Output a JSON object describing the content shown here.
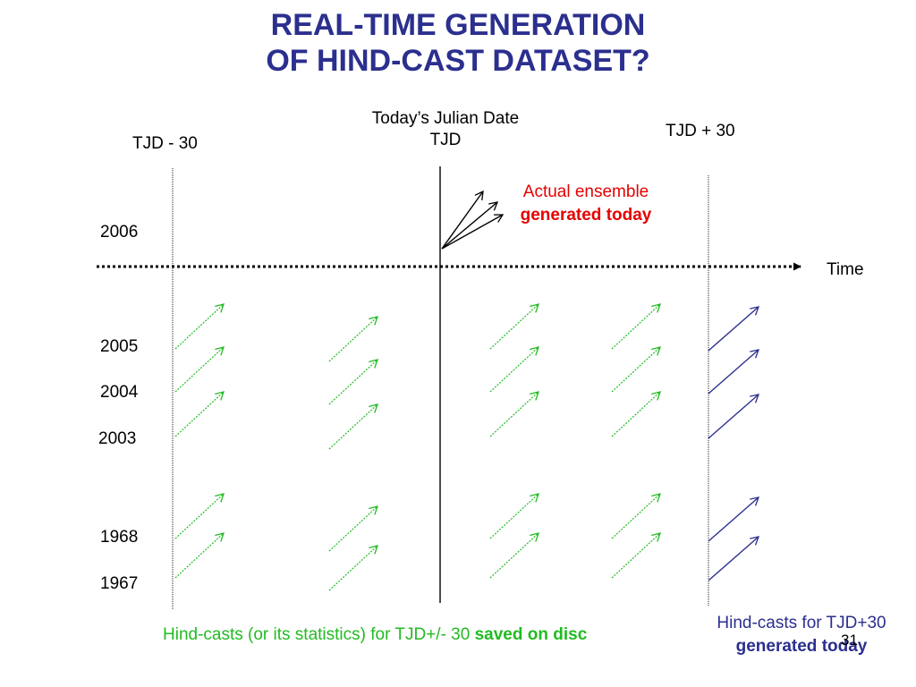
{
  "title": {
    "line1": "REAL-TIME GENERATION",
    "line2": "OF HIND-CAST DATASET?"
  },
  "timeline": {
    "left_label": "TJD - 30",
    "center_label_line1": "Today’s Julian Date",
    "center_label_line2": "TJD",
    "right_label": "TJD + 30",
    "axis_label": "Time"
  },
  "years": [
    "2006",
    "2005",
    "2004",
    "2003",
    "1968",
    "1967"
  ],
  "annotations": {
    "actual_line1": "Actual ensemble",
    "actual_line2": "generated today",
    "saved_prefix": "Hind-casts (or its statistics) for TJD+/- 30 ",
    "saved_bold": "saved on disc",
    "generated_line1": "Hind-casts for TJD+30",
    "generated_line2": "generated today"
  },
  "page_number": "31",
  "colors": {
    "title": "#2b2f8e",
    "hindcast_saved": "#22bb22",
    "hindcast_generated": "#2b2f8e",
    "actual_ensemble": "#e60000"
  }
}
